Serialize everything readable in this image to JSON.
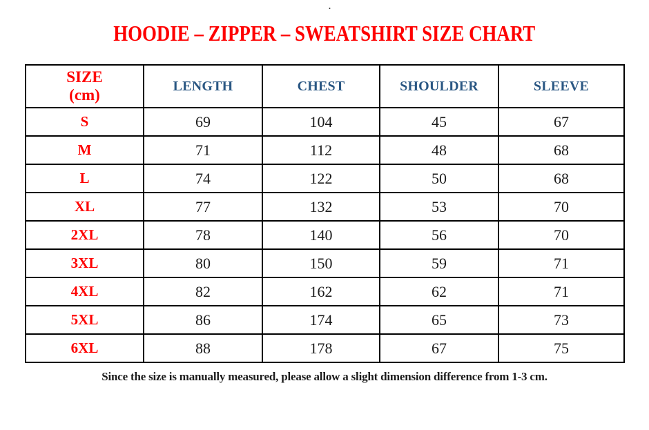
{
  "page": {
    "stray_dot": ".",
    "title": "HOODIE – ZIPPER – SWEATSHIRT SIZE CHART",
    "footnote": "Since the size is manually measured, please allow a slight dimension difference from 1-3 cm."
  },
  "colors": {
    "title_red": "#fe0000",
    "header_blue": "#2a5783",
    "body_text": "#1c1c1c",
    "border": "#000000",
    "background": "#ffffff"
  },
  "table": {
    "size_header_line1": "SIZE",
    "size_header_line2": "(cm)",
    "measure_headers": [
      "LENGTH",
      "CHEST",
      "SHOULDER",
      "SLEEVE"
    ],
    "rows": [
      {
        "size": "S",
        "length": "69",
        "chest": "104",
        "shoulder": "45",
        "sleeve": "67"
      },
      {
        "size": "M",
        "length": "71",
        "chest": "112",
        "shoulder": "48",
        "sleeve": "68"
      },
      {
        "size": "L",
        "length": "74",
        "chest": "122",
        "shoulder": "50",
        "sleeve": "68"
      },
      {
        "size": "XL",
        "length": "77",
        "chest": "132",
        "shoulder": "53",
        "sleeve": "70"
      },
      {
        "size": "2XL",
        "length": "78",
        "chest": "140",
        "shoulder": "56",
        "sleeve": "70"
      },
      {
        "size": "3XL",
        "length": "80",
        "chest": "150",
        "shoulder": "59",
        "sleeve": "71"
      },
      {
        "size": "4XL",
        "length": "82",
        "chest": "162",
        "shoulder": "62",
        "sleeve": "71"
      },
      {
        "size": "5XL",
        "length": "86",
        "chest": "174",
        "shoulder": "65",
        "sleeve": "73"
      },
      {
        "size": "6XL",
        "length": "88",
        "chest": "178",
        "shoulder": "67",
        "sleeve": "75"
      }
    ]
  },
  "chart_data": {
    "type": "table",
    "title": "HOODIE – ZIPPER – SWEATSHIRT SIZE CHART",
    "columns": [
      "SIZE (cm)",
      "LENGTH",
      "CHEST",
      "SHOULDER",
      "SLEEVE"
    ],
    "rows": [
      [
        "S",
        69,
        104,
        45,
        67
      ],
      [
        "M",
        71,
        112,
        48,
        68
      ],
      [
        "L",
        74,
        122,
        50,
        68
      ],
      [
        "XL",
        77,
        132,
        53,
        70
      ],
      [
        "2XL",
        78,
        140,
        56,
        70
      ],
      [
        "3XL",
        80,
        150,
        59,
        71
      ],
      [
        "4XL",
        82,
        162,
        62,
        71
      ],
      [
        "5XL",
        86,
        174,
        65,
        73
      ],
      [
        "6XL",
        88,
        178,
        67,
        75
      ]
    ],
    "footnote": "Since the size is manually measured, please allow a slight dimension difference from 1-3 cm."
  }
}
